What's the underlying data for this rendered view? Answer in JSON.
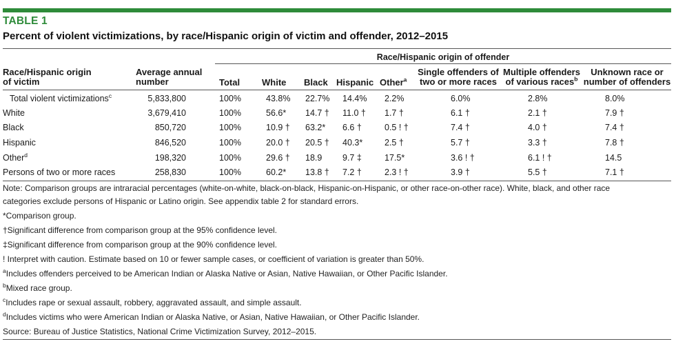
{
  "table_label": "TABLE 1",
  "title": "Percent of violent victimizations, by race/Hispanic origin of victim and offender, 2012–2015",
  "header": {
    "group": "Race/Hispanic origin of offender",
    "victim_line1": "Race/Hispanic origin",
    "victim_line2": "of victim",
    "avg_line1": "Average annual",
    "avg_line2": "number",
    "total": "Total",
    "white": "White",
    "black": "Black",
    "hispanic": "Hispanic",
    "other": "Other",
    "other_sup": "a",
    "single_line1": "Single offenders of",
    "single_line2": "two or more races",
    "multi_line1": "Multiple offenders",
    "multi_line2": "of various races",
    "multi_sup": "b",
    "unknown_line1": "Unknown race or",
    "unknown_line2": "number of offenders"
  },
  "rows": [
    {
      "label": "Total violent victimizations",
      "sup": "c",
      "avg": "5,833,800",
      "total": "100%",
      "white": "43.8%",
      "black": "22.7%",
      "hispanic": "14.4%",
      "other": "2.2%",
      "single": "6.0%",
      "multi": "2.8%",
      "unknown": "8.0%"
    },
    {
      "label": "White",
      "sup": "",
      "avg": "3,679,410",
      "total": "100%",
      "white": "56.6*",
      "black": "14.7 †",
      "hispanic": "11.0 †",
      "other": "1.7 †",
      "single": "6.1 †",
      "multi": "2.1 †",
      "unknown": "7.9 †"
    },
    {
      "label": "Black",
      "sup": "",
      "avg": "850,720",
      "total": "100%",
      "white": "10.9 †",
      "black": "63.2*",
      "hispanic": "6.6 †",
      "other": "0.5 ! †",
      "single": "7.4 †",
      "multi": "4.0 †",
      "unknown": "7.4 †"
    },
    {
      "label": "Hispanic",
      "sup": "",
      "avg": "846,520",
      "total": "100%",
      "white": "20.0 †",
      "black": "20.5 †",
      "hispanic": "40.3*",
      "other": "2.5 †",
      "single": "5.7 †",
      "multi": "3.3 †",
      "unknown": "7.8 †"
    },
    {
      "label": "Other",
      "sup": "d",
      "avg": "198,320",
      "total": "100%",
      "white": "29.6 †",
      "black": "18.9",
      "hispanic": "9.7 ‡",
      "other": "17.5*",
      "single": "3.6 ! †",
      "multi": "6.1 ! †",
      "unknown": "14.5"
    },
    {
      "label": "Persons of two or more races",
      "sup": "",
      "avg": "258,830",
      "total": "100%",
      "white": "60.2*",
      "black": "13.8 †",
      "hispanic": "7.2 †",
      "other": "2.3 ! †",
      "single": "3.9 †",
      "multi": "5.5 †",
      "unknown": "7.1 †"
    }
  ],
  "notes": {
    "note_line1": "Note: Comparison groups are intraracial percentages (white-on-white, black-on-black, Hispanic-on-Hispanic, or other race-on-other race). White, black, and other race",
    "note_line2": "categories exclude persons of Hispanic or Latino origin. See appendix table 2 for standard errors.",
    "comparison": "*Comparison group.",
    "sig95": "†Significant difference from comparison group at the 95% confidence level.",
    "sig90": "‡Significant difference from comparison group at the 90% confidence level.",
    "caution": "! Interpret with caution. Estimate based on 10 or fewer sample cases, or coefficient of variation is greater than 50%.",
    "fn_a_mark": "a",
    "fn_a": "Includes offenders perceived to be American Indian or Alaska Native or Asian, Native Hawaiian, or Other Pacific Islander.",
    "fn_b_mark": "b",
    "fn_b": "Mixed race group.",
    "fn_c_mark": "c",
    "fn_c": "Includes rape or sexual assault, robbery, aggravated assault, and simple assault.",
    "fn_d_mark": "d",
    "fn_d": "Includes victims who were American Indian or Alaska Native, or Asian, Native Hawaiian, or Other Pacific Islander.",
    "source": "Source: Bureau of Justice Statistics, National Crime Victimization Survey, 2012–2015."
  },
  "colors": {
    "accent": "#2e8b3a"
  }
}
